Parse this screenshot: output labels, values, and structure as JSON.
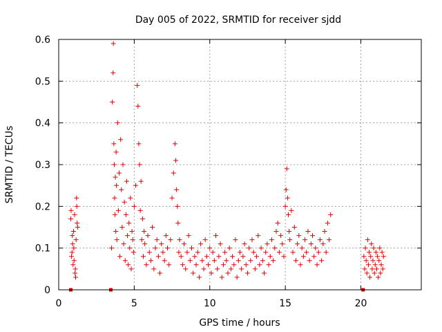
{
  "chart_data": {
    "type": "scatter",
    "title": "Day 005 of 2022, SRMTID for receiver sjdd",
    "xlabel": "GPS time / hours",
    "ylabel": "SRMTID / TECUs",
    "xlim": [
      0,
      24
    ],
    "ylim": [
      0,
      0.6
    ],
    "xticks": [
      0,
      5,
      10,
      15,
      20
    ],
    "xtick_labels": [
      "0",
      "5",
      "10",
      "15",
      "20"
    ],
    "yticks": [
      0,
      0.1,
      0.2,
      0.3,
      0.4,
      0.5,
      0.6
    ],
    "ytick_labels": [
      "0",
      "0.1",
      "0.2",
      "0.3",
      "0.4",
      "0.5",
      "0.6"
    ],
    "grid": true,
    "marker": "+",
    "color": "#e00000",
    "series": [
      {
        "name": "SRMTID",
        "x": [
          0.8,
          0.85,
          0.9,
          0.95,
          1.0,
          1.05,
          1.1,
          1.15,
          1.2,
          1.25,
          0.82,
          0.92,
          1.02,
          1.12,
          1.22,
          0.88,
          0.98,
          1.08,
          1.18,
          3.5,
          3.55,
          3.6,
          3.62,
          3.65,
          3.68,
          3.7,
          3.72,
          3.75,
          3.78,
          3.8,
          3.82,
          3.85,
          3.9,
          3.95,
          4.0,
          4.05,
          4.1,
          4.15,
          4.2,
          4.25,
          4.3,
          4.35,
          4.4,
          4.45,
          4.5,
          4.55,
          4.6,
          4.65,
          4.7,
          4.75,
          4.8,
          4.85,
          4.9,
          4.95,
          5.0,
          5.1,
          5.2,
          5.25,
          5.3,
          5.35,
          5.4,
          5.45,
          5.5,
          5.55,
          5.6,
          5.65,
          5.7,
          5.8,
          5.9,
          6.0,
          6.1,
          6.2,
          6.3,
          6.4,
          6.5,
          6.6,
          6.7,
          6.8,
          6.9,
          7.0,
          7.1,
          7.2,
          7.3,
          7.4,
          7.5,
          7.6,
          7.7,
          7.75,
          7.8,
          7.85,
          7.9,
          7.95,
          8.0,
          8.1,
          8.2,
          8.3,
          8.4,
          8.5,
          8.6,
          8.7,
          8.8,
          8.9,
          9.0,
          9.1,
          9.2,
          9.3,
          9.4,
          9.5,
          9.6,
          9.7,
          9.8,
          9.9,
          10.0,
          10.1,
          10.2,
          10.3,
          10.4,
          10.5,
          10.6,
          10.7,
          10.8,
          10.9,
          11.0,
          11.1,
          11.2,
          11.3,
          11.4,
          11.5,
          11.6,
          11.7,
          11.8,
          11.9,
          12.0,
          12.1,
          12.2,
          12.3,
          12.4,
          12.5,
          12.6,
          12.7,
          12.8,
          12.9,
          13.0,
          13.1,
          13.2,
          13.3,
          13.4,
          13.5,
          13.6,
          13.7,
          13.8,
          13.9,
          14.0,
          14.1,
          14.2,
          14.3,
          14.4,
          14.5,
          14.6,
          14.7,
          14.8,
          14.9,
          15.0,
          15.05,
          15.1,
          15.15,
          15.2,
          15.25,
          15.3,
          15.4,
          15.5,
          15.6,
          15.7,
          15.8,
          15.9,
          16.0,
          16.1,
          16.2,
          16.3,
          16.4,
          16.5,
          16.6,
          16.7,
          16.8,
          16.9,
          17.0,
          17.1,
          17.2,
          17.3,
          17.4,
          17.5,
          17.6,
          17.7,
          17.8,
          17.9,
          18.0,
          20.2,
          20.25,
          20.3,
          20.35,
          20.4,
          20.45,
          20.5,
          20.55,
          20.6,
          20.65,
          20.7,
          20.75,
          20.8,
          20.85,
          20.9,
          20.95,
          21.0,
          21.05,
          21.1,
          21.15,
          21.2,
          21.25,
          21.3,
          21.35,
          21.4,
          21.45,
          21.5
        ],
        "y": [
          0.17,
          0.08,
          0.13,
          0.06,
          0.1,
          0.18,
          0.05,
          0.12,
          0.2,
          0.15,
          0.19,
          0.11,
          0.07,
          0.03,
          0.16,
          0.09,
          0.14,
          0.04,
          0.22,
          0.1,
          0.45,
          0.52,
          0.59,
          0.35,
          0.3,
          0.22,
          0.18,
          0.27,
          0.14,
          0.33,
          0.25,
          0.12,
          0.4,
          0.19,
          0.28,
          0.08,
          0.36,
          0.24,
          0.15,
          0.3,
          0.11,
          0.21,
          0.07,
          0.18,
          0.26,
          0.13,
          0.06,
          0.16,
          0.1,
          0.22,
          0.05,
          0.14,
          0.12,
          0.09,
          0.2,
          0.25,
          0.49,
          0.44,
          0.35,
          0.3,
          0.19,
          0.26,
          0.12,
          0.17,
          0.08,
          0.14,
          0.11,
          0.06,
          0.13,
          0.09,
          0.07,
          0.15,
          0.05,
          0.1,
          0.12,
          0.08,
          0.04,
          0.11,
          0.09,
          0.07,
          0.13,
          0.1,
          0.06,
          0.12,
          0.22,
          0.28,
          0.35,
          0.31,
          0.24,
          0.2,
          0.16,
          0.09,
          0.12,
          0.08,
          0.06,
          0.11,
          0.05,
          0.09,
          0.13,
          0.07,
          0.1,
          0.04,
          0.08,
          0.06,
          0.09,
          0.03,
          0.11,
          0.07,
          0.05,
          0.12,
          0.08,
          0.06,
          0.1,
          0.04,
          0.09,
          0.07,
          0.13,
          0.05,
          0.08,
          0.11,
          0.03,
          0.06,
          0.09,
          0.07,
          0.04,
          0.1,
          0.05,
          0.08,
          0.06,
          0.12,
          0.03,
          0.07,
          0.09,
          0.05,
          0.08,
          0.11,
          0.06,
          0.04,
          0.1,
          0.07,
          0.12,
          0.09,
          0.05,
          0.08,
          0.13,
          0.06,
          0.1,
          0.07,
          0.04,
          0.09,
          0.11,
          0.06,
          0.08,
          0.12,
          0.07,
          0.1,
          0.14,
          0.16,
          0.09,
          0.13,
          0.11,
          0.08,
          0.2,
          0.24,
          0.29,
          0.22,
          0.18,
          0.14,
          0.12,
          0.19,
          0.09,
          0.15,
          0.07,
          0.11,
          0.13,
          0.06,
          0.1,
          0.08,
          0.12,
          0.09,
          0.14,
          0.07,
          0.11,
          0.13,
          0.08,
          0.1,
          0.06,
          0.09,
          0.12,
          0.07,
          0.11,
          0.14,
          0.09,
          0.16,
          0.12,
          0.18,
          0.08,
          0.05,
          0.1,
          0.07,
          0.04,
          0.12,
          0.06,
          0.09,
          0.03,
          0.08,
          0.11,
          0.05,
          0.07,
          0.1,
          0.04,
          0.06,
          0.09,
          0.05,
          0.08,
          0.03,
          0.07,
          0.1,
          0.04,
          0.06,
          0.09,
          0.05,
          0.08
        ]
      }
    ],
    "gap_markers_x": [
      0.8,
      3.45,
      20.15
    ]
  }
}
